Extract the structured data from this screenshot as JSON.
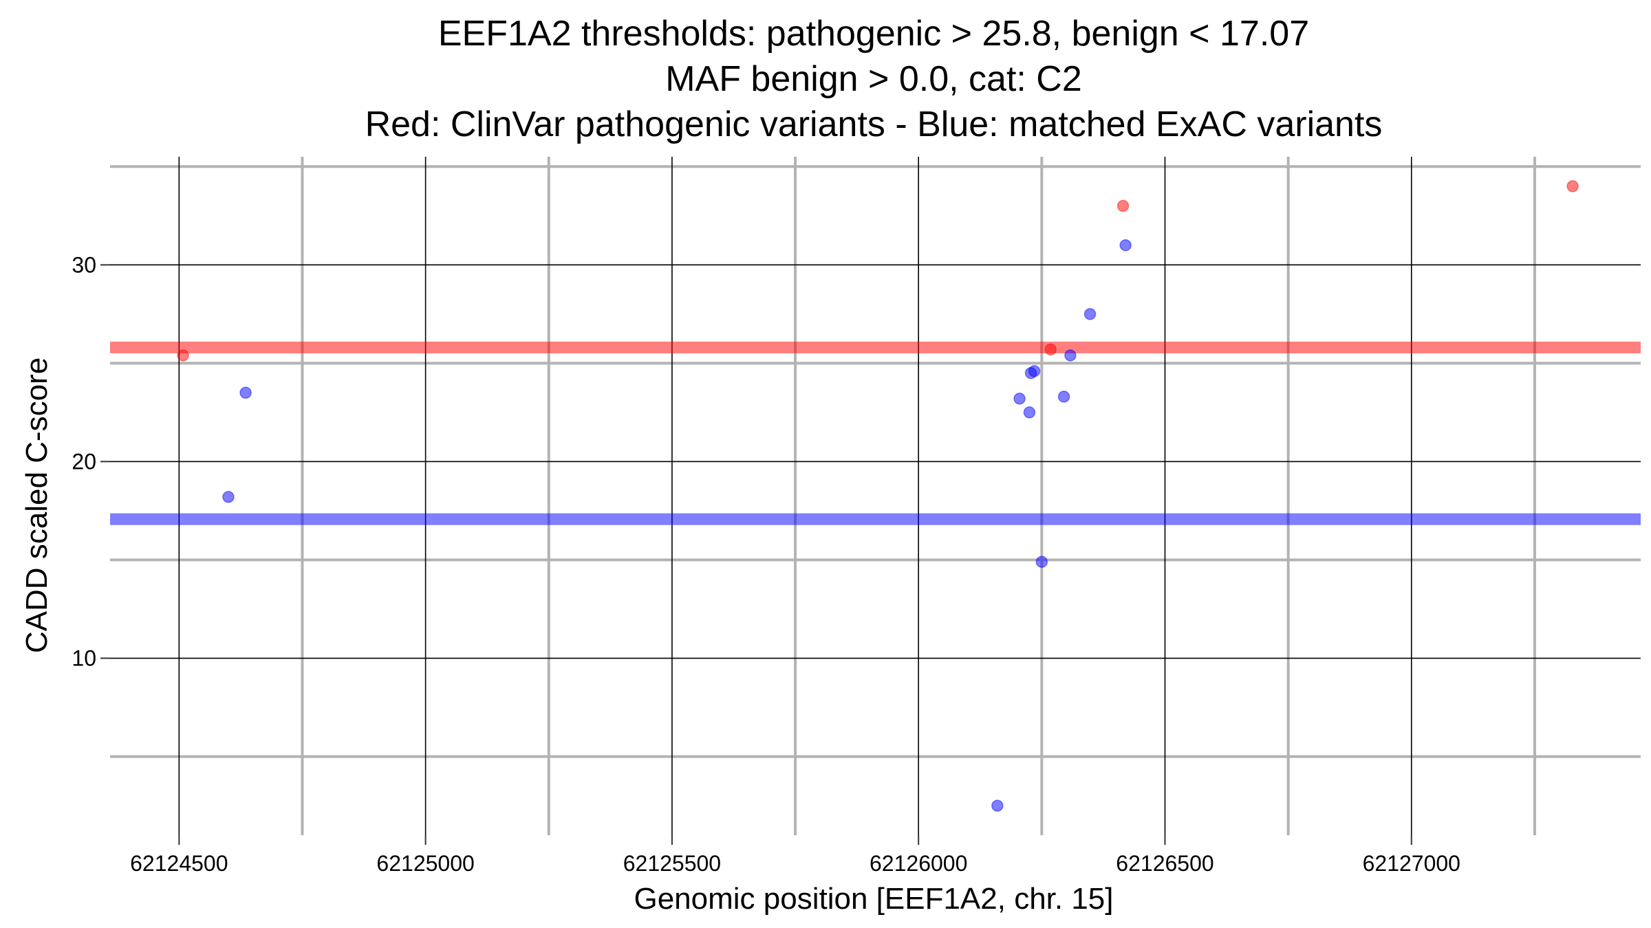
{
  "chart_data": {
    "type": "scatter",
    "title_lines": [
      "EEF1A2 thresholds: pathogenic > 25.8, benign < 17.07",
      "MAF benign > 0.0, cat: C2",
      "Red: ClinVar pathogenic variants - Blue: matched ExAC variants"
    ],
    "xlabel": "Genomic position [EEF1A2, chr. 15]",
    "ylabel": "CADD scaled C-score",
    "xlim": [
      62124360,
      62127465
    ],
    "ylim": [
      1,
      35.5
    ],
    "x_major_ticks": [
      62124500,
      62125000,
      62125500,
      62126000,
      62126500,
      62127000
    ],
    "x_tick_labels": [
      "62124500",
      "62125000",
      "62125500",
      "62126000",
      "62126500",
      "62127000"
    ],
    "x_minor_ticks": [
      62124750,
      62125250,
      62125750,
      62126250,
      62126750,
      62127250
    ],
    "y_major_ticks": [
      10,
      20,
      30
    ],
    "y_tick_labels": [
      "10",
      "20",
      "30"
    ],
    "y_minor_ticks": [
      5,
      15,
      25,
      35
    ],
    "grid": true,
    "thresholds": [
      {
        "label": "pathogenic",
        "value": 25.8,
        "color": "#ff0000"
      },
      {
        "label": "benign",
        "value": 17.07,
        "color": "#0000ff"
      }
    ],
    "series": [
      {
        "name": "ClinVar pathogenic variants",
        "color": "#ff0000",
        "points": [
          {
            "x": 62124508,
            "y": 25.4
          },
          {
            "x": 62126268,
            "y": 25.7
          },
          {
            "x": 62126415,
            "y": 33.0
          },
          {
            "x": 62127327,
            "y": 34.0
          }
        ]
      },
      {
        "name": "matched ExAC variants",
        "color": "#0000ff",
        "points": [
          {
            "x": 62124600,
            "y": 18.2
          },
          {
            "x": 62124635,
            "y": 23.5
          },
          {
            "x": 62126160,
            "y": 2.5
          },
          {
            "x": 62126205,
            "y": 23.2
          },
          {
            "x": 62126225,
            "y": 22.5
          },
          {
            "x": 62126228,
            "y": 24.5
          },
          {
            "x": 62126235,
            "y": 24.6
          },
          {
            "x": 62126250,
            "y": 14.9
          },
          {
            "x": 62126295,
            "y": 23.3
          },
          {
            "x": 62126308,
            "y": 25.4
          },
          {
            "x": 62126348,
            "y": 27.5
          },
          {
            "x": 62126420,
            "y": 31.0
          }
        ]
      }
    ]
  }
}
